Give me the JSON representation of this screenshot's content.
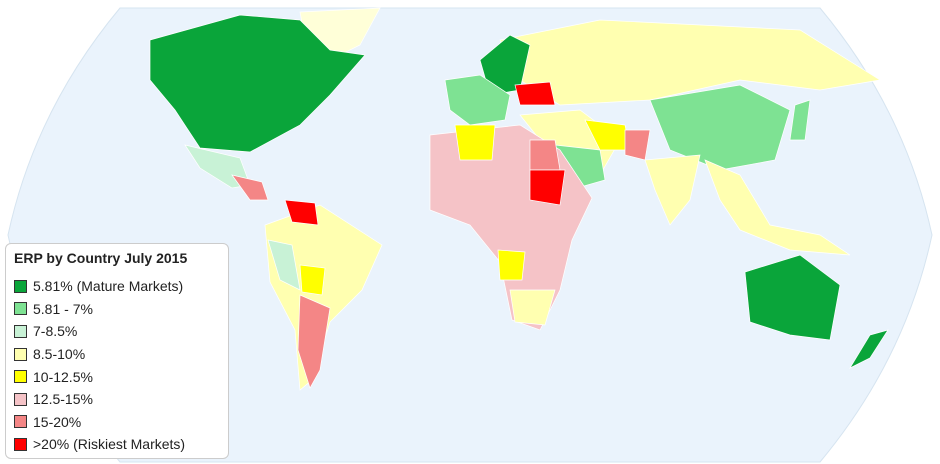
{
  "legend": {
    "title": "ERP by Country July 2015",
    "items": [
      {
        "label": "5.81% (Mature Markets)",
        "color": "#0aa53a"
      },
      {
        "label": "5.81 - 7%",
        "color": "#7ee293"
      },
      {
        "label": "7-8.5%",
        "color": "#c8f2d6"
      },
      {
        "label": "8.5-10%",
        "color": "#ffffb0"
      },
      {
        "label": "10-12.5%",
        "color": "#ffff00"
      },
      {
        "label": "12.5-15%",
        "color": "#f5c3c7"
      },
      {
        "label": "15-20%",
        "color": "#f48686"
      },
      {
        "label": ">20% (Riskiest Markets)",
        "color": "#ff0000"
      }
    ]
  }
}
